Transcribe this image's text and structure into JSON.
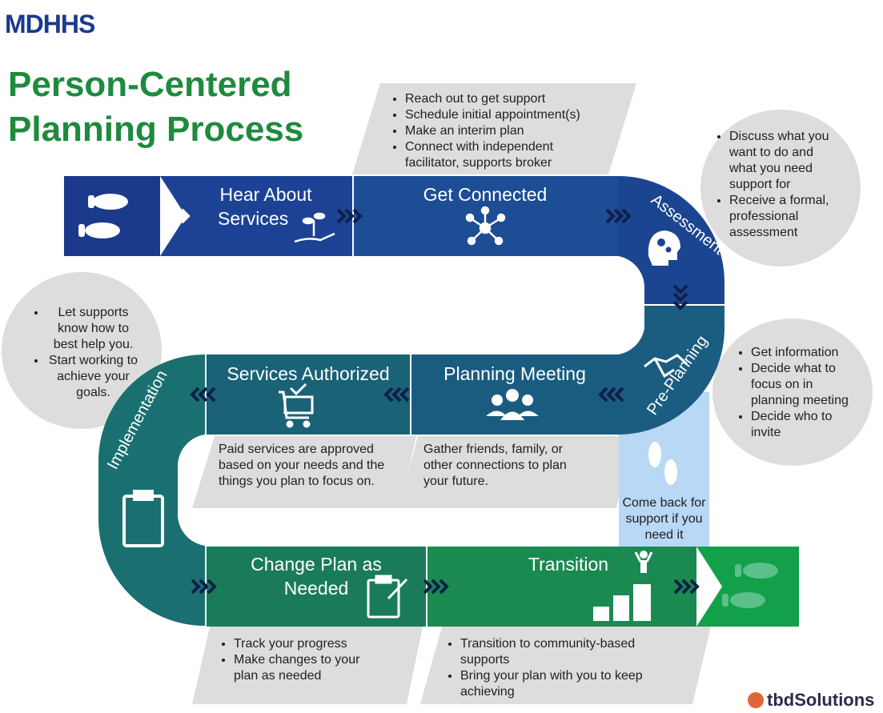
{
  "logo": {
    "text": "MDHHS"
  },
  "title": {
    "line1": "Person-Centered",
    "line2": "Planning Process"
  },
  "steps": {
    "hear": {
      "label_line1": "Hear About",
      "label_line2": "Services"
    },
    "connected": {
      "label": "Get Connected",
      "bullets": [
        "Reach out to get support",
        "Schedule initial appointment(s)",
        "Make an interim plan",
        "Connect with independent facilitator, supports broker"
      ]
    },
    "assessment": {
      "label": "Assessment",
      "bullets": [
        "Discuss what you want to do and what you need support for",
        "Receive a formal, professional assessment"
      ]
    },
    "preplanning": {
      "label": "Pre-Planning",
      "bullets": [
        "Get information",
        "Decide what to focus on in planning meeting",
        "Decide who to invite"
      ]
    },
    "planning_meeting": {
      "label": "Planning Meeting",
      "description": "Gather friends, family, or other connections to plan your future."
    },
    "services_authorized": {
      "label": "Services Authorized",
      "description": "Paid services are approved based on your needs and the things you plan to focus on."
    },
    "implementation": {
      "label": "Implementation",
      "bullets": [
        "Let supports know how to best help you.",
        "Start working to achieve your goals."
      ]
    },
    "change_plan": {
      "label_line1": "Change Plan as",
      "label_line2": "Needed",
      "bullets": [
        "Track your progress",
        "Make changes to your plan as needed"
      ]
    },
    "transition": {
      "label": "Transition",
      "bullets": [
        "Transition to community-based supports",
        "Bring your plan with you to keep achieving"
      ]
    }
  },
  "come_back": {
    "text": "Come back for support if you need it"
  },
  "footer": {
    "brand": "tbdSolutions"
  },
  "colors": {
    "dark_blue": "#1b3a8c",
    "mid_blue": "#1d4d95",
    "teal": "#1a6a7a",
    "green": "#1a8f50",
    "bright_green": "#13a04a",
    "light_blue": "#b8d8f5",
    "gray": "#dddddd"
  }
}
